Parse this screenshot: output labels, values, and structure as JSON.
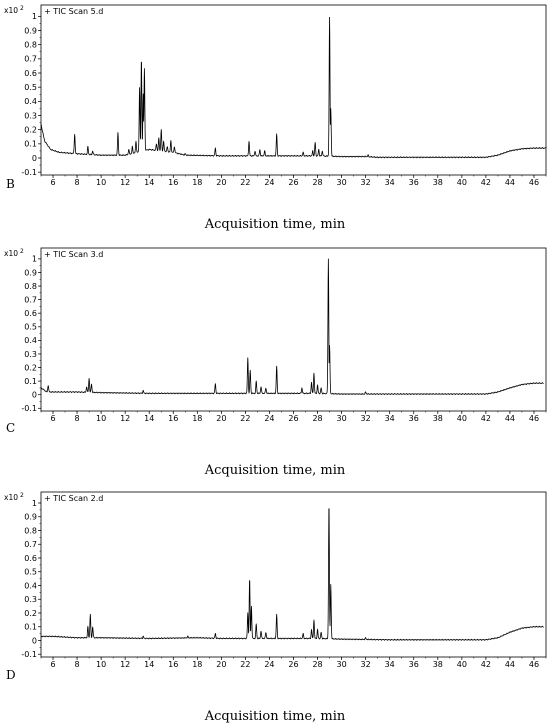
{
  "chart_data": [
    {
      "type": "line",
      "panel_label": "B",
      "legend": "+ TIC Scan 5.d",
      "multiplier": "x10",
      "multiplier_exp": "2",
      "xlabel": "Acquisition time, min",
      "xlim": [
        5.0,
        47.0
      ],
      "ylim": [
        -0.12,
        1.08
      ],
      "xticks": [
        6,
        8,
        10,
        12,
        14,
        16,
        18,
        20,
        22,
        24,
        26,
        28,
        30,
        32,
        34,
        36,
        38,
        40,
        42,
        44,
        46
      ],
      "yticks": [
        -0.1,
        0,
        0.1,
        0.2,
        0.3,
        0.4,
        0.5,
        0.6,
        0.7,
        0.8,
        0.9,
        1
      ],
      "baseline": [
        [
          5.0,
          0.24
        ],
        [
          5.3,
          0.12
        ],
        [
          5.8,
          0.06
        ],
        [
          6.5,
          0.04
        ],
        [
          8,
          0.03
        ],
        [
          10,
          0.02
        ],
        [
          12,
          0.02
        ],
        [
          13,
          0.04
        ],
        [
          14,
          0.06
        ],
        [
          15,
          0.05
        ],
        [
          16,
          0.04
        ],
        [
          17,
          0.02
        ],
        [
          20,
          0.015
        ],
        [
          24,
          0.015
        ],
        [
          28,
          0.015
        ],
        [
          30,
          0.01
        ],
        [
          32,
          0.01
        ],
        [
          33,
          0.005
        ],
        [
          36,
          0.005
        ],
        [
          40,
          0.005
        ],
        [
          42,
          0.005
        ],
        [
          43,
          0.02
        ],
        [
          44,
          0.05
        ],
        [
          45,
          0.065
        ],
        [
          46,
          0.07
        ],
        [
          47,
          0.07
        ]
      ],
      "peaks": [
        [
          7.8,
          0.17
        ],
        [
          8.9,
          0.08
        ],
        [
          9.3,
          0.05
        ],
        [
          11.4,
          0.18
        ],
        [
          12.3,
          0.06
        ],
        [
          12.6,
          0.08
        ],
        [
          12.9,
          0.12
        ],
        [
          13.2,
          0.5
        ],
        [
          13.35,
          0.7
        ],
        [
          13.5,
          0.45
        ],
        [
          13.6,
          0.63
        ],
        [
          14.6,
          0.1
        ],
        [
          14.8,
          0.14
        ],
        [
          15.0,
          0.2
        ],
        [
          15.2,
          0.12
        ],
        [
          15.5,
          0.08
        ],
        [
          15.8,
          0.12
        ],
        [
          16.1,
          0.08
        ],
        [
          17.0,
          0.03
        ],
        [
          19.5,
          0.07
        ],
        [
          22.3,
          0.12
        ],
        [
          22.8,
          0.05
        ],
        [
          23.2,
          0.06
        ],
        [
          23.6,
          0.05
        ],
        [
          24.6,
          0.17
        ],
        [
          26.8,
          0.04
        ],
        [
          27.6,
          0.05
        ],
        [
          27.8,
          0.11
        ],
        [
          28.1,
          0.06
        ],
        [
          28.4,
          0.05
        ],
        [
          29.0,
          0.99
        ],
        [
          29.1,
          0.35
        ],
        [
          32.2,
          0.02
        ]
      ]
    },
    {
      "type": "line",
      "panel_label": "C",
      "legend": "+ TIC Scan 3.d",
      "multiplier": "x10",
      "multiplier_exp": "2",
      "xlabel": "Acquisition time, min",
      "xlim": [
        5.0,
        47.0
      ],
      "ylim": [
        -0.12,
        1.08
      ],
      "xticks": [
        6,
        8,
        10,
        12,
        14,
        16,
        18,
        20,
        22,
        24,
        26,
        28,
        30,
        32,
        34,
        36,
        38,
        40,
        42,
        44,
        46
      ],
      "yticks": [
        -0.1,
        0,
        0.1,
        0.2,
        0.3,
        0.4,
        0.5,
        0.6,
        0.7,
        0.8,
        0.9,
        1
      ],
      "baseline": [
        [
          5.0,
          0.05
        ],
        [
          5.5,
          0.02
        ],
        [
          6,
          0.02
        ],
        [
          8,
          0.02
        ],
        [
          10,
          0.015
        ],
        [
          14,
          0.01
        ],
        [
          20,
          0.01
        ],
        [
          24,
          0.01
        ],
        [
          28,
          0.01
        ],
        [
          30,
          0.005
        ],
        [
          34,
          0.005
        ],
        [
          40,
          0.005
        ],
        [
          42,
          0.005
        ],
        [
          43,
          0.02
        ],
        [
          44,
          0.05
        ],
        [
          45,
          0.075
        ],
        [
          46,
          0.085
        ],
        [
          46.8,
          0.085
        ]
      ],
      "peaks": [
        [
          5.6,
          0.07
        ],
        [
          8.8,
          0.06
        ],
        [
          9.0,
          0.12
        ],
        [
          9.2,
          0.08
        ],
        [
          13.5,
          0.03
        ],
        [
          19.5,
          0.08
        ],
        [
          22.2,
          0.27
        ],
        [
          22.4,
          0.18
        ],
        [
          22.9,
          0.1
        ],
        [
          23.3,
          0.06
        ],
        [
          23.7,
          0.05
        ],
        [
          24.6,
          0.21
        ],
        [
          26.7,
          0.05
        ],
        [
          27.5,
          0.09
        ],
        [
          27.7,
          0.16
        ],
        [
          28.0,
          0.07
        ],
        [
          28.3,
          0.05
        ],
        [
          28.9,
          1.0
        ],
        [
          29.0,
          0.36
        ],
        [
          32.0,
          0.02
        ]
      ]
    },
    {
      "type": "line",
      "panel_label": "D",
      "legend": "+ TIC Scan 2.d",
      "multiplier": "x10",
      "multiplier_exp": "2",
      "xlabel": "Acquisition time, min",
      "xlim": [
        5.0,
        47.0
      ],
      "ylim": [
        -0.12,
        1.08
      ],
      "xticks": [
        6,
        8,
        10,
        12,
        14,
        16,
        18,
        20,
        22,
        24,
        26,
        28,
        30,
        32,
        34,
        36,
        38,
        40,
        42,
        44,
        46
      ],
      "yticks": [
        -0.1,
        0,
        0.1,
        0.2,
        0.3,
        0.4,
        0.5,
        0.6,
        0.7,
        0.8,
        0.9,
        1
      ],
      "baseline": [
        [
          5.0,
          0.03
        ],
        [
          6,
          0.03
        ],
        [
          8,
          0.02
        ],
        [
          10,
          0.02
        ],
        [
          14,
          0.015
        ],
        [
          18,
          0.02
        ],
        [
          20,
          0.015
        ],
        [
          24,
          0.015
        ],
        [
          28,
          0.015
        ],
        [
          30,
          0.01
        ],
        [
          34,
          0.005
        ],
        [
          40,
          0.005
        ],
        [
          42,
          0.005
        ],
        [
          43,
          0.02
        ],
        [
          44,
          0.06
        ],
        [
          45,
          0.09
        ],
        [
          46,
          0.1
        ],
        [
          46.8,
          0.1
        ]
      ],
      "peaks": [
        [
          8.9,
          0.1
        ],
        [
          9.1,
          0.19
        ],
        [
          9.3,
          0.1
        ],
        [
          13.5,
          0.03
        ],
        [
          17.2,
          0.03
        ],
        [
          19.5,
          0.05
        ],
        [
          22.2,
          0.2
        ],
        [
          22.35,
          0.45
        ],
        [
          22.5,
          0.25
        ],
        [
          22.9,
          0.12
        ],
        [
          23.3,
          0.07
        ],
        [
          23.7,
          0.06
        ],
        [
          24.6,
          0.19
        ],
        [
          26.8,
          0.05
        ],
        [
          27.5,
          0.08
        ],
        [
          27.7,
          0.15
        ],
        [
          28.0,
          0.08
        ],
        [
          28.3,
          0.06
        ],
        [
          28.95,
          1.0
        ],
        [
          29.1,
          0.41
        ],
        [
          32.0,
          0.02
        ]
      ]
    }
  ]
}
